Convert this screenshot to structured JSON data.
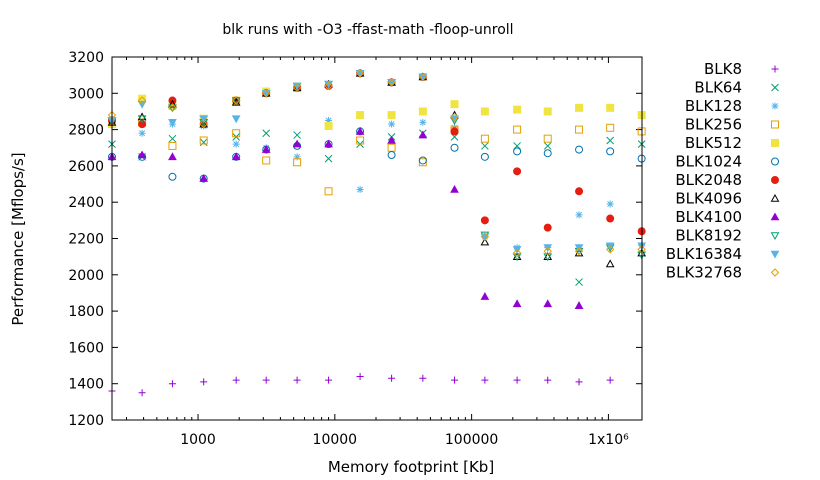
{
  "chart_data": {
    "type": "scatter",
    "title": "blk runs with -O3 -ffast-math -floop-unroll",
    "xlabel": "Memory footprint [Kb]",
    "ylabel": "Performance [Mflops/s]",
    "xscale": "log",
    "xlim": [
      235,
      1760000
    ],
    "ylim": [
      1200,
      3200
    ],
    "x_ticks": [
      1000,
      10000,
      100000,
      1000000
    ],
    "x_tick_labels": [
      "1000",
      "10000",
      "100000",
      "1x10⁶"
    ],
    "y_ticks": [
      1200,
      1400,
      1600,
      1800,
      2000,
      2200,
      2400,
      2600,
      2800,
      3000,
      3200
    ],
    "y_tick_labels": [
      "1200",
      "1400",
      "1600",
      "1800",
      "2000",
      "2200",
      "2400",
      "2600",
      "2800",
      "3000",
      "3200"
    ],
    "grid": false,
    "legend_position": "outside-right",
    "x": [
      235,
      390,
      650,
      1100,
      1900,
      3150,
      5300,
      9000,
      15300,
      26000,
      44000,
      75000,
      125000,
      215000,
      360000,
      610000,
      1030000,
      1750000
    ],
    "series": [
      {
        "name": "BLK8",
        "marker": "plus",
        "color": "#9400d3",
        "values": [
          1360,
          1350,
          1400,
          1410,
          1420,
          1420,
          1420,
          1420,
          1440,
          1430,
          1430,
          1420,
          1420,
          1420,
          1420,
          1410,
          1420,
          null
        ]
      },
      {
        "name": "BLK64",
        "marker": "cross",
        "color": "#009e73",
        "values": [
          2720,
          2650,
          2750,
          2730,
          2760,
          2780,
          2770,
          2640,
          2720,
          2760,
          2780,
          2760,
          2710,
          2710,
          2710,
          1960,
          2740,
          2720
        ]
      },
      {
        "name": "BLK128",
        "marker": "star",
        "color": "#56b4e9",
        "values": [
          2860,
          2780,
          2830,
          2820,
          2720,
          2700,
          2650,
          2850,
          2470,
          2830,
          2840,
          2810,
          2210,
          2150,
          2150,
          2330,
          2390,
          2160
        ]
      },
      {
        "name": "BLK256",
        "marker": "box",
        "color": "#e69f00",
        "values": [
          2840,
          2840,
          2710,
          2740,
          2780,
          2630,
          2620,
          2460,
          2740,
          2700,
          2620,
          2800,
          2750,
          2800,
          2750,
          2800,
          2810,
          2790
        ]
      },
      {
        "name": "BLK512",
        "marker": "filled-box",
        "color": "#f0e442",
        "values": [
          2830,
          2970,
          2930,
          2860,
          2960,
          3010,
          3030,
          2820,
          2880,
          2880,
          2900,
          2940,
          2900,
          2910,
          2900,
          2920,
          2920,
          2880
        ]
      },
      {
        "name": "BLK1024",
        "marker": "circle",
        "color": "#0072b2",
        "values": [
          2650,
          2650,
          2540,
          2530,
          2650,
          2690,
          2710,
          2720,
          2790,
          2660,
          2630,
          2700,
          2650,
          2680,
          2670,
          2690,
          2680,
          2640
        ]
      },
      {
        "name": "BLK2048",
        "marker": "filled-circle",
        "color": "#e51e10",
        "values": [
          2850,
          2830,
          2960,
          2830,
          2960,
          3000,
          3030,
          3040,
          3110,
          3060,
          3090,
          2790,
          2300,
          2570,
          2260,
          2460,
          2310,
          2240
        ]
      },
      {
        "name": "BLK4096",
        "marker": "triangle",
        "color": "#000000",
        "values": [
          2840,
          2870,
          2940,
          2830,
          2950,
          3000,
          3030,
          3050,
          3110,
          3060,
          3090,
          2880,
          2180,
          2100,
          2100,
          2120,
          2060,
          2120
        ]
      },
      {
        "name": "BLK4100",
        "marker": "filled-triangle",
        "color": "#9400d3",
        "values": [
          2650,
          2660,
          2650,
          2530,
          2650,
          2690,
          2720,
          2720,
          2790,
          2740,
          2770,
          2470,
          1880,
          1840,
          1840,
          1830,
          null,
          null
        ]
      },
      {
        "name": "BLK8192",
        "marker": "inverted-triangle",
        "color": "#009e73",
        "values": [
          2850,
          2860,
          2920,
          2840,
          2960,
          3000,
          3040,
          3050,
          3110,
          3060,
          3090,
          2850,
          2220,
          2100,
          2100,
          2130,
          2150,
          2110
        ]
      },
      {
        "name": "BLK16384",
        "marker": "filled-inverted-triangle",
        "color": "#56b4e9",
        "values": [
          2850,
          2940,
          2840,
          2860,
          2860,
          3000,
          3040,
          3050,
          3110,
          3060,
          3090,
          2860,
          2210,
          2140,
          2150,
          2150,
          2160,
          2160
        ]
      },
      {
        "name": "BLK32768",
        "marker": "diamond",
        "color": "#e69f00",
        "values": [
          2880,
          2960,
          2920,
          2830,
          2960,
          3000,
          3030,
          3040,
          3110,
          3060,
          3090,
          2870,
          2210,
          2120,
          2130,
          2130,
          2140,
          2140
        ]
      }
    ]
  }
}
